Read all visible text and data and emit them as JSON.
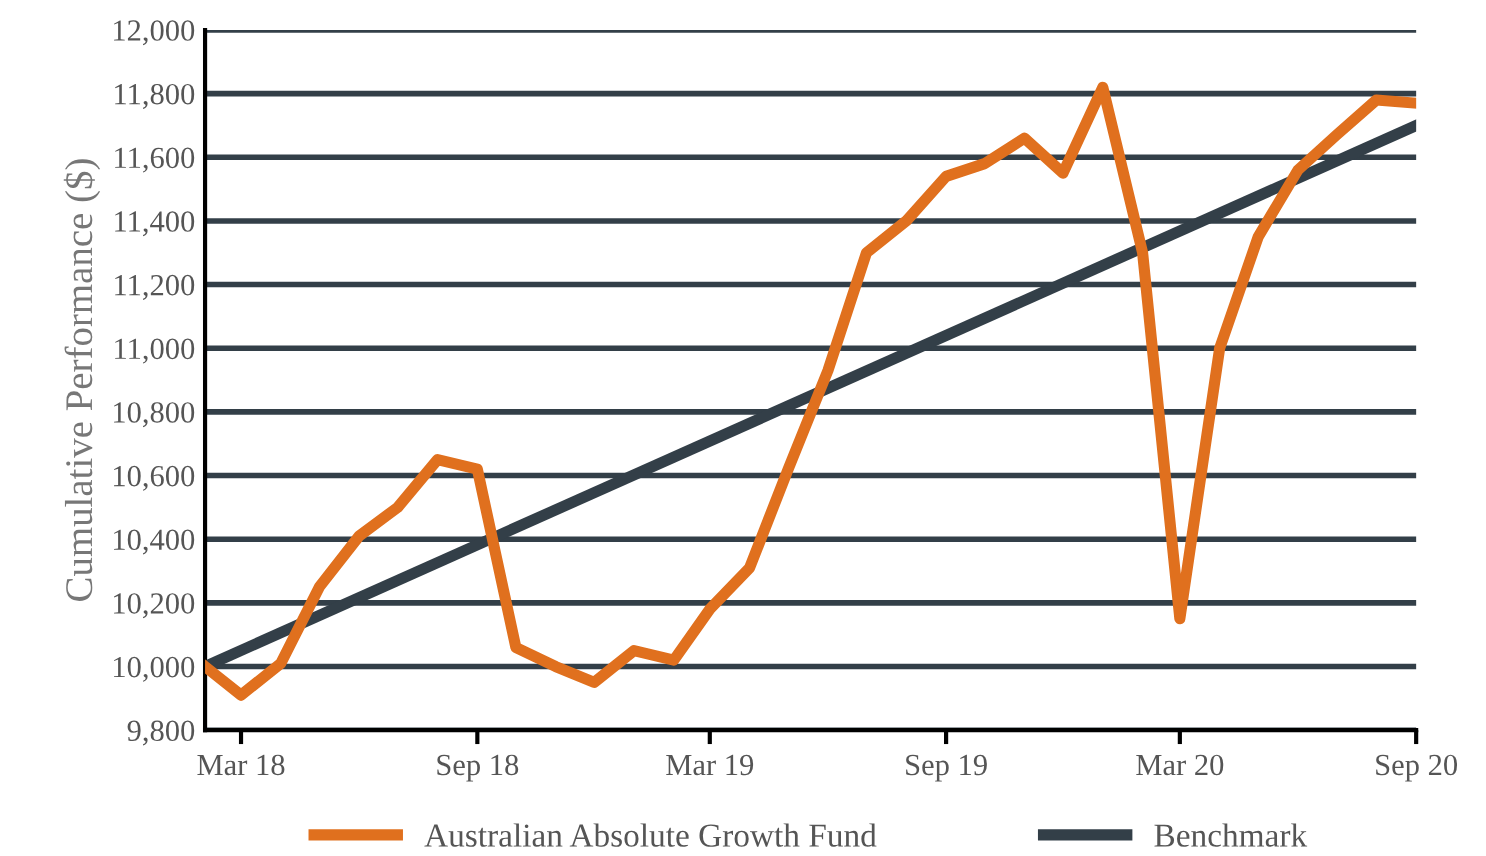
{
  "chart_data": {
    "type": "line",
    "ylabel": "Cumulative Performance ($)",
    "xlim": [
      "2018-02",
      "2020-09"
    ],
    "xticks": [
      {
        "value": "2018-03",
        "label": "Mar 18"
      },
      {
        "value": "2018-09",
        "label": "Sep 18"
      },
      {
        "value": "2019-03",
        "label": "Mar 19"
      },
      {
        "value": "2019-09",
        "label": "Sep 19"
      },
      {
        "value": "2020-03",
        "label": "Mar 20"
      },
      {
        "value": "2020-09",
        "label": "Sep 20"
      }
    ],
    "ylim": [
      9800,
      12000
    ],
    "yticks": [
      {
        "value": 9800,
        "label": "9,800"
      },
      {
        "value": 10000,
        "label": "10,000"
      },
      {
        "value": 10200,
        "label": "10,200"
      },
      {
        "value": 10400,
        "label": "10,400"
      },
      {
        "value": 10600,
        "label": "10,600"
      },
      {
        "value": 10800,
        "label": "10,800"
      },
      {
        "value": 11000,
        "label": "11,000"
      },
      {
        "value": 11200,
        "label": "11,200"
      },
      {
        "value": 11400,
        "label": "11,400"
      },
      {
        "value": 11600,
        "label": "11,600"
      },
      {
        "value": 11800,
        "label": "11,800"
      },
      {
        "value": 12000,
        "label": "12,000"
      }
    ],
    "grid": "y",
    "legend": "bottom",
    "marker": "none",
    "line_style": "solid",
    "series": [
      {
        "name": "Australian Absolute Growth Fund",
        "color": "#e0701e",
        "x": [
          "2018-02",
          "2018-03",
          "2018-04",
          "2018-05",
          "2018-06",
          "2018-07",
          "2018-08",
          "2018-09",
          "2018-10",
          "2018-11",
          "2018-12",
          "2019-01",
          "2019-02",
          "2019-03",
          "2019-04",
          "2019-05",
          "2019-06",
          "2019-07",
          "2019-08",
          "2019-09",
          "2019-10",
          "2019-11",
          "2019-12",
          "2020-01",
          "2020-02",
          "2020-03",
          "2020-04",
          "2020-05",
          "2020-06",
          "2020-07",
          "2020-08",
          "2020-09"
        ],
        "values": [
          10000,
          9910,
          10010,
          10250,
          10410,
          10500,
          10650,
          10620,
          10060,
          10000,
          9950,
          10050,
          10020,
          10180,
          10310,
          10620,
          10930,
          11300,
          11400,
          11540,
          11580,
          11660,
          11550,
          11820,
          11300,
          10150,
          11000,
          11350,
          11560,
          11670,
          11780,
          11770
        ]
      },
      {
        "name": "Benchmark",
        "color": "#333f48",
        "x": [
          "2018-02",
          "2020-09"
        ],
        "values": [
          10000,
          11700
        ]
      }
    ]
  }
}
